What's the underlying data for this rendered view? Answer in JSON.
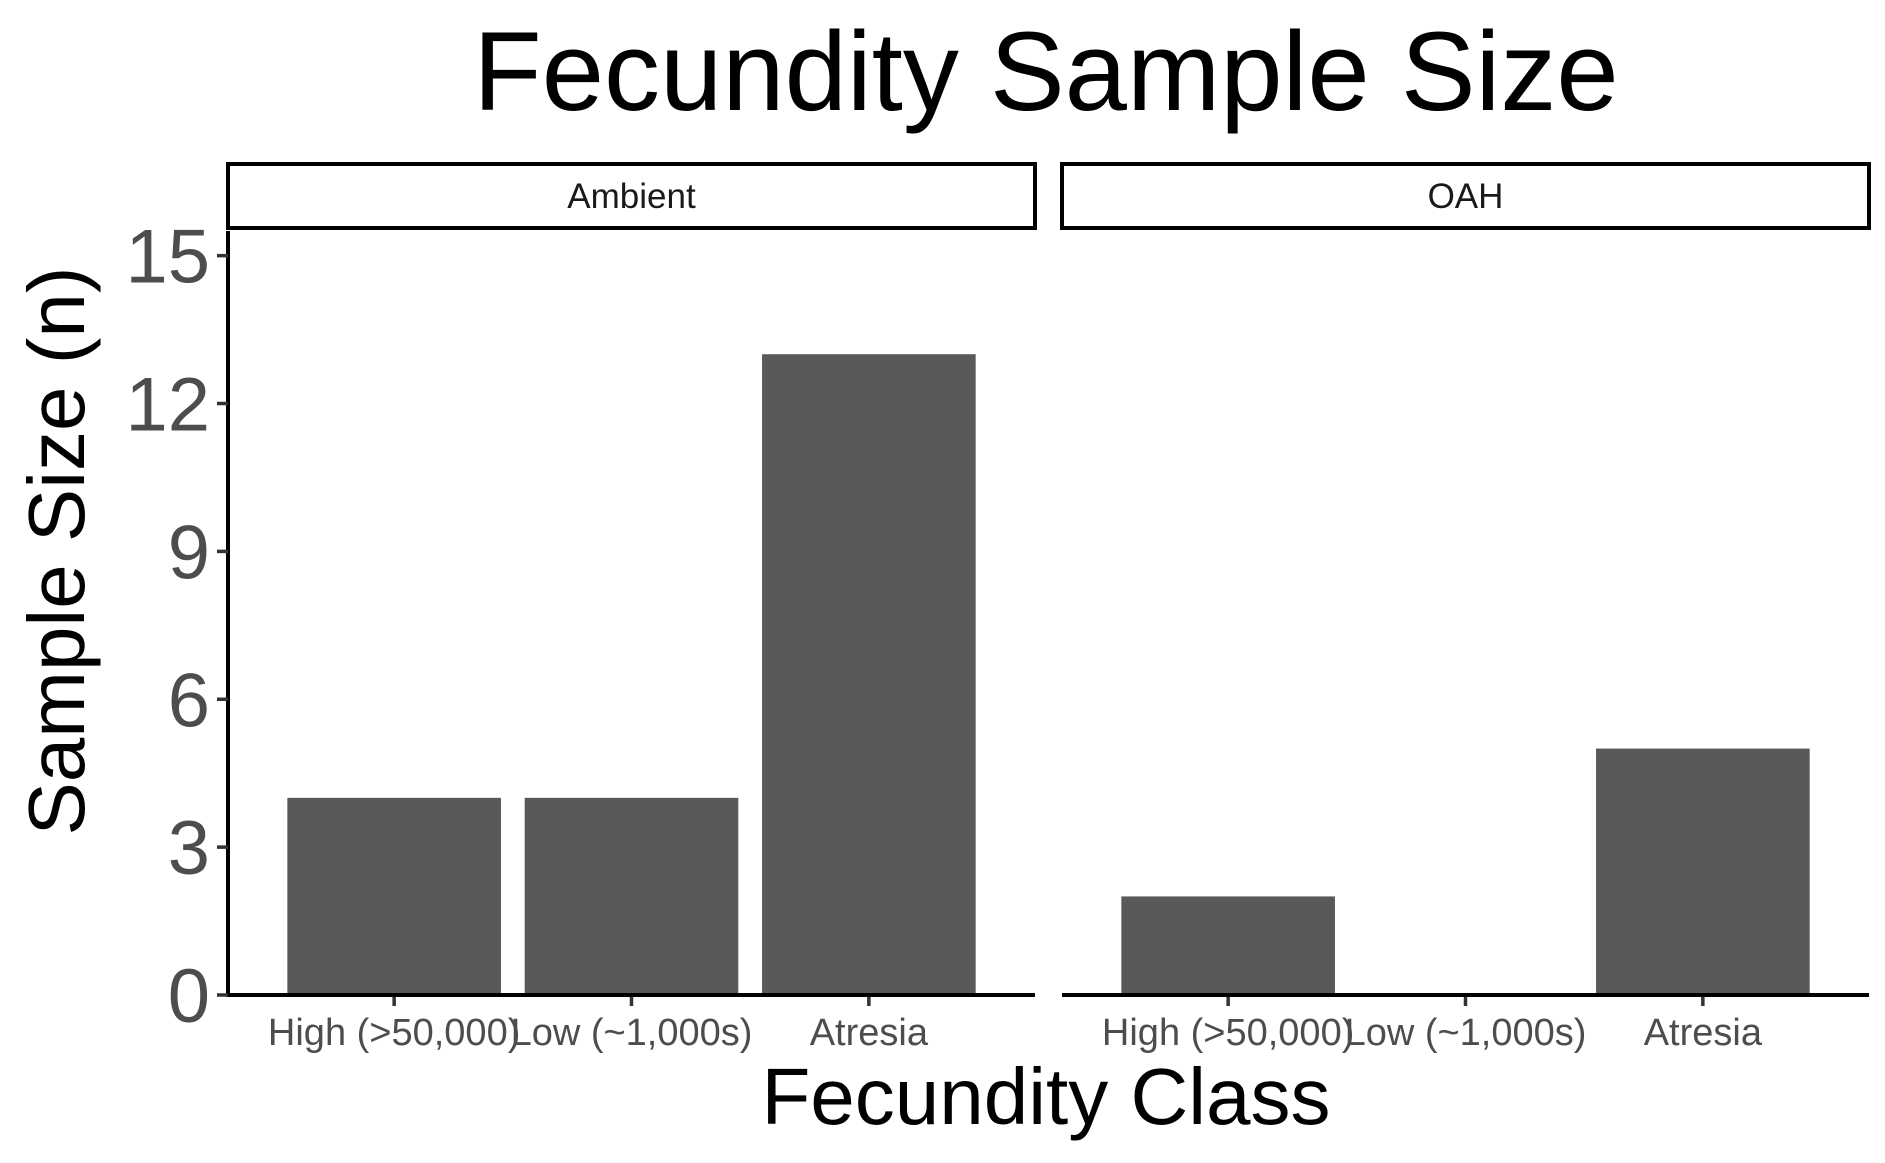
{
  "chart_data": {
    "type": "bar",
    "title": "Fecundity Sample Size",
    "xlabel": "Fecundity Class",
    "ylabel": "Sample Size (n)",
    "categories": [
      "High (>50,000)",
      "Low (~1,000s)",
      "Atresia"
    ],
    "yticks": [
      "0",
      "3",
      "6",
      "9",
      "12",
      "15"
    ],
    "ytick_values": [
      0,
      3,
      6,
      9,
      12,
      15
    ],
    "ylim": [
      0,
      15.5
    ],
    "grid": false,
    "bar_color": "#595959",
    "panels": [
      {
        "name": "Ambient",
        "values": [
          4,
          4,
          13
        ]
      },
      {
        "name": "OAH",
        "values": [
          2,
          0,
          5
        ]
      }
    ]
  }
}
